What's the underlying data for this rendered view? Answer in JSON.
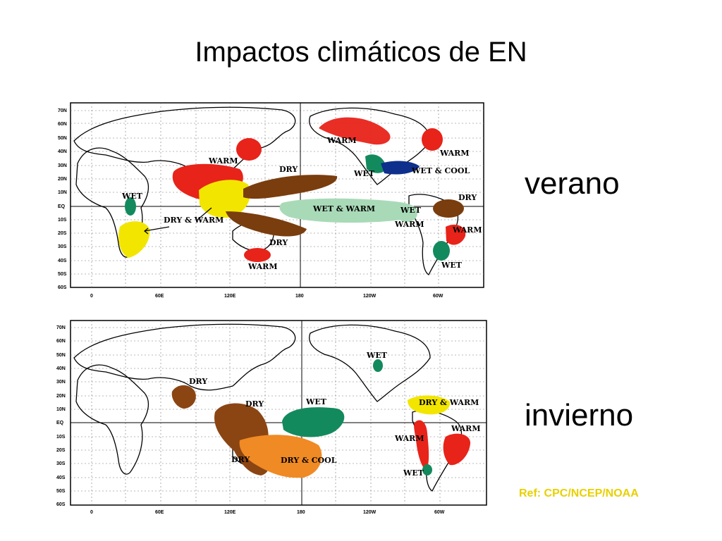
{
  "title": "Impactos climáticos de EN",
  "panels": [
    {
      "label": "verano",
      "lat_ticks": [
        "70N",
        "60N",
        "50N",
        "40N",
        "30N",
        "20N",
        "10N",
        "EQ",
        "10S",
        "20S",
        "30S",
        "40S",
        "50S",
        "60S"
      ],
      "lon_ticks": [
        "0",
        "60E",
        "120E",
        "180",
        "120W",
        "60W"
      ],
      "regions": [
        {
          "label": "WARM",
          "color": "#e8231a"
        },
        {
          "label": "DRY",
          "color": "#7a3d0e"
        },
        {
          "label": "WARM",
          "color": "#e8231a"
        },
        {
          "label": "WET",
          "color": "#138a5e"
        },
        {
          "label": "WET & COOL",
          "color": "#0e2f8c"
        },
        {
          "label": "WARM",
          "color": "#e8231a"
        },
        {
          "label": "DRY",
          "color": "#7a3d0e"
        },
        {
          "label": "WET",
          "color": "#138a5e"
        },
        {
          "label": "DRY & WARM",
          "color": "#f2e600"
        },
        {
          "label": "WET & WARM",
          "color": "#a9dab8"
        },
        {
          "label": "WET",
          "color": "#138a5e"
        },
        {
          "label": "WARM",
          "color": "#a9dab8"
        },
        {
          "label": "DRY",
          "color": "#7a3d0e"
        },
        {
          "label": "WARM",
          "color": "#e8231a"
        },
        {
          "label": "WARM",
          "color": "#e8231a"
        },
        {
          "label": "WET",
          "color": "#138a5e"
        }
      ]
    },
    {
      "label": "invierno",
      "lat_ticks": [
        "70N",
        "60N",
        "50N",
        "40N",
        "30N",
        "20N",
        "10N",
        "EQ",
        "10S",
        "20S",
        "30S",
        "40S",
        "50S",
        "60S"
      ],
      "lon_ticks": [
        "0",
        "60E",
        "120E",
        "180",
        "120W",
        "60W"
      ],
      "regions": [
        {
          "label": "DRY",
          "color": "#8b4513"
        },
        {
          "label": "DRY",
          "color": "#8b4513"
        },
        {
          "label": "WET",
          "color": "#138a5e"
        },
        {
          "label": "WET",
          "color": "#138a5e"
        },
        {
          "label": "DRY & WARM",
          "color": "#f2e600"
        },
        {
          "label": "WARM",
          "color": "#e8231a"
        },
        {
          "label": "WARM",
          "color": "#e8231a"
        },
        {
          "label": "WET",
          "color": "#138a5e"
        },
        {
          "label": "DRY",
          "color": "#8b4513"
        },
        {
          "label": "DRY & COOL",
          "color": "#f08a24"
        }
      ]
    }
  ],
  "ref": "Ref: CPC/NCEP/NOAA"
}
